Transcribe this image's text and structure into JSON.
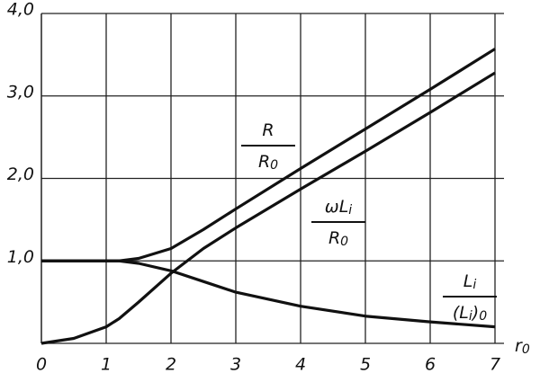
{
  "chart_data": {
    "type": "line",
    "x": [
      0,
      0.5,
      1,
      1.2,
      1.5,
      2,
      2.5,
      3,
      4,
      5,
      6,
      7
    ],
    "series": [
      {
        "color": "#111111",
        "values": [
          1,
          1,
          1,
          1,
          1.03,
          1.15,
          1.38,
          1.63,
          2.12,
          2.6,
          3.08,
          3.57
        ],
        "label": {
          "numerator": [
            {
              "text": "R"
            }
          ],
          "denominator": [
            {
              "text": "R"
            },
            {
              "text": "0",
              "sub": true
            }
          ]
        }
      },
      {
        "color": "#111111",
        "values": [
          0,
          0.06,
          0.2,
          0.3,
          0.5,
          0.85,
          1.15,
          1.4,
          1.87,
          2.33,
          2.8,
          3.28
        ],
        "label": {
          "numerator": [
            {
              "text": "ωL"
            },
            {
              "text": "i",
              "sub": true
            }
          ],
          "denominator": [
            {
              "text": "R"
            },
            {
              "text": "0",
              "sub": true
            }
          ]
        }
      },
      {
        "color": "#111111",
        "values": [
          1,
          1,
          1,
          1,
          0.97,
          0.88,
          0.75,
          0.62,
          0.45,
          0.33,
          0.26,
          0.2
        ],
        "label": {
          "numerator": [
            {
              "text": "L"
            },
            {
              "text": "i",
              "sub": true
            }
          ],
          "denominator": [
            {
              "text": "(L"
            },
            {
              "text": "i",
              "sub": true
            },
            {
              "text": ")"
            },
            {
              "text": "0",
              "sub": true
            }
          ]
        }
      }
    ],
    "x_label": [
      {
        "text": "r"
      },
      {
        "text": "0",
        "sub": true
      }
    ],
    "xlim": [
      0,
      7
    ],
    "xticks": [
      0,
      1,
      2,
      3,
      4,
      5,
      6,
      7
    ],
    "ylim": [
      0,
      4
    ],
    "yticks": [
      {
        "value": 1,
        "label": "1,0"
      },
      {
        "value": 2,
        "label": "2,0"
      },
      {
        "value": 3,
        "label": "3,0"
      },
      {
        "value": 4,
        "label": "4,0"
      }
    ],
    "grid": true
  }
}
